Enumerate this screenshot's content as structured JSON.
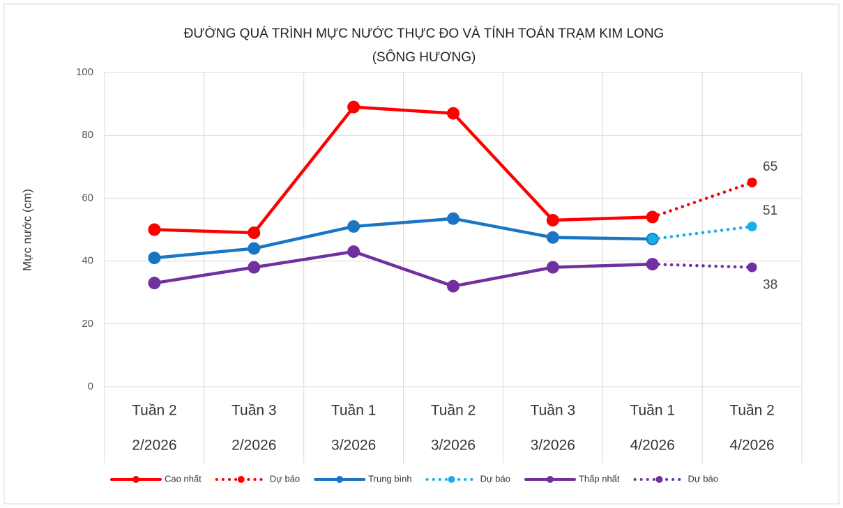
{
  "chart_data": {
    "type": "line",
    "title": [
      "ĐƯỜNG QUÁ TRÌNH MỰC NƯỚC THỰC ĐO VÀ TÍNH TOÁN TRẠM KIM LONG",
      "(SÔNG HƯƠNG)"
    ],
    "y_label": "Mực nước (cm)",
    "categories": [
      [
        "Tuần 2",
        "2/2026"
      ],
      [
        "Tuần 3",
        "2/2026"
      ],
      [
        "Tuần 1",
        "3/2026"
      ],
      [
        "Tuần 2",
        "3/2026"
      ],
      [
        "Tuần 3",
        "3/2026"
      ],
      [
        "Tuần 1",
        "4/2026"
      ],
      [
        "Tuần 2",
        "4/2026"
      ]
    ],
    "series": [
      {
        "name": "Cao nhất",
        "color": "#ff0000",
        "style": "solid",
        "values": [
          50,
          49,
          89,
          87,
          53,
          54,
          null
        ]
      },
      {
        "name": "Dự báo",
        "color": "#ff0000",
        "style": "dotted",
        "values": [
          null,
          null,
          null,
          null,
          null,
          54,
          65
        ],
        "label_last": true
      },
      {
        "name": "Trung bình",
        "color": "#1a75c4",
        "style": "solid",
        "values": [
          41,
          44,
          51,
          53.5,
          47.5,
          47,
          null
        ]
      },
      {
        "name": "Dự báo",
        "color": "#1aaee8",
        "style": "dotted",
        "values": [
          null,
          null,
          null,
          null,
          null,
          47,
          51
        ],
        "label_last": true
      },
      {
        "name": "Thấp nhất",
        "color": "#7030a0",
        "style": "solid",
        "values": [
          33,
          38,
          43,
          32,
          38,
          39,
          null
        ]
      },
      {
        "name": "Dự báo",
        "color": "#7030a0",
        "style": "dotted",
        "values": [
          null,
          null,
          null,
          null,
          null,
          39,
          38
        ],
        "label_last": true
      }
    ],
    "ylim": [
      0,
      100
    ],
    "yticks": [
      0,
      20,
      40,
      60,
      80,
      100
    ],
    "grid": true,
    "legend": "bottom"
  }
}
